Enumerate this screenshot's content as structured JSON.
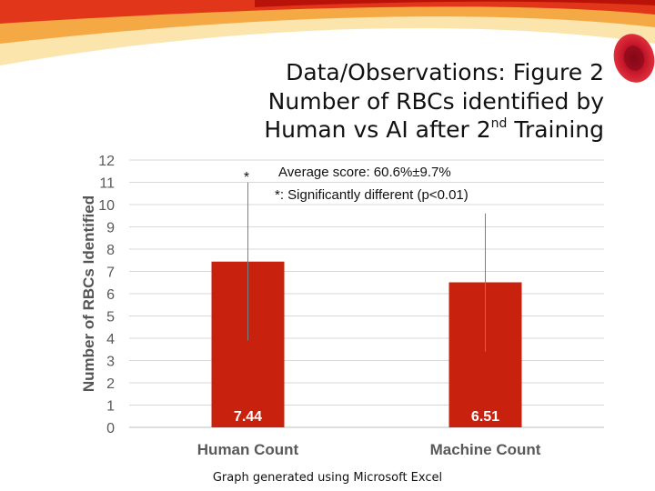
{
  "slide": {
    "title_lines": [
      "Data/Observations: Figure 2",
      "Number of RBCs identified by",
      "Human vs AI after 2"
    ],
    "title_superscript": "nd",
    "title_tail": " Training",
    "caption": "Graph generated using Microsoft Excel",
    "colors": {
      "swoosh_red": "#cc1a10",
      "swoosh_orange": "#f08a1e",
      "swoosh_yellow": "#f6c64a",
      "rbc_red": "#c8102e"
    }
  },
  "chart_data": {
    "type": "bar",
    "categories": [
      "Human Count",
      "Machine Count"
    ],
    "values": [
      7.44,
      6.51
    ],
    "data_labels": [
      "7.44",
      "6.51"
    ],
    "error_bars": [
      {
        "low": 3.9,
        "high": 11.0
      },
      {
        "low": 3.4,
        "high": 9.6
      }
    ],
    "significance_marker": "*",
    "ylabel": "Number of RBCs Identified",
    "xlabel": "",
    "ylim": [
      0,
      12
    ],
    "yticks": [
      "0",
      "1",
      "2",
      "3",
      "4",
      "5",
      "6",
      "7",
      "8",
      "9",
      "10",
      "11",
      "12"
    ],
    "grid": true,
    "bar_color": "#c8220f",
    "annotations": [
      "Average score: 60.6%±9.7%",
      "*: Significantly different (p<0.01)"
    ]
  }
}
